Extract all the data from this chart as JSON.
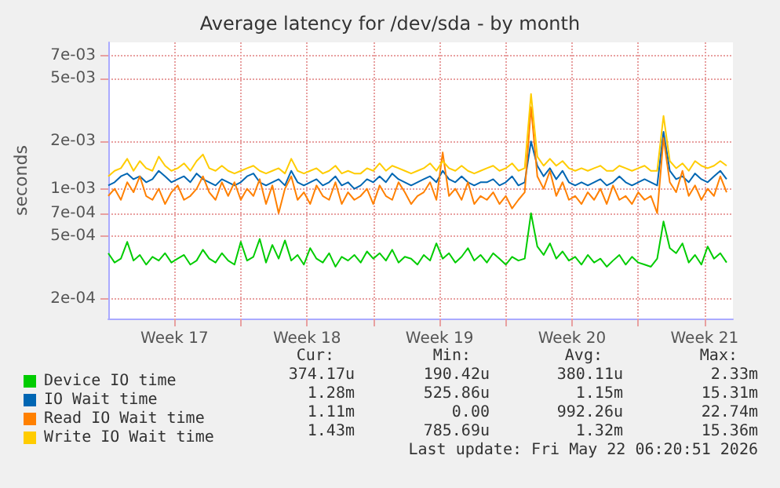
{
  "chart_data": {
    "type": "line",
    "title": "Average latency for /dev/sda - by month",
    "ylabel": "seconds",
    "log": "y",
    "grid": true,
    "legend": "bottom",
    "xlim": [
      "2026-04-20T00:00",
      "2026-05-23T00:00"
    ],
    "xticks": [
      {
        "value": "2026-04-23T12:00",
        "label": "Week 17"
      },
      {
        "value": "2026-04-27T00:00",
        "label": null
      },
      {
        "value": "2026-04-30T12:00",
        "label": "Week 18"
      },
      {
        "value": "2026-05-04T00:00",
        "label": null
      },
      {
        "value": "2026-05-07T12:00",
        "label": "Week 19"
      },
      {
        "value": "2026-05-11T00:00",
        "label": null
      },
      {
        "value": "2026-05-14T12:00",
        "label": "Week 20"
      },
      {
        "value": "2026-05-18T00:00",
        "label": null
      },
      {
        "value": "2026-05-21T12:00",
        "label": "Week 21"
      }
    ],
    "ylim": [
      0.00015,
      0.0085
    ],
    "yticks": [
      {
        "value": 0.0002,
        "label": "2e-04"
      },
      {
        "value": 0.0005,
        "label": "5e-04"
      },
      {
        "value": 0.0007,
        "label": "7e-04"
      },
      {
        "value": 0.001,
        "label": "1e-03"
      },
      {
        "value": 0.002,
        "label": "2e-03"
      },
      {
        "value": 0.005,
        "label": "5e-03"
      },
      {
        "value": 0.007,
        "label": "7e-03"
      }
    ],
    "x": [
      "2026-04-20T00:00",
      "2026-04-20T08:00",
      "2026-04-20T16:00",
      "2026-04-21T00:00",
      "2026-04-21T08:00",
      "2026-04-21T16:00",
      "2026-04-22T00:00",
      "2026-04-22T08:00",
      "2026-04-22T16:00",
      "2026-04-23T00:00",
      "2026-04-23T08:00",
      "2026-04-23T16:00",
      "2026-04-24T00:00",
      "2026-04-24T08:00",
      "2026-04-24T16:00",
      "2026-04-25T00:00",
      "2026-04-25T08:00",
      "2026-04-25T16:00",
      "2026-04-26T00:00",
      "2026-04-26T08:00",
      "2026-04-26T16:00",
      "2026-04-27T00:00",
      "2026-04-27T08:00",
      "2026-04-27T16:00",
      "2026-04-28T00:00",
      "2026-04-28T08:00",
      "2026-04-28T16:00",
      "2026-04-29T00:00",
      "2026-04-29T08:00",
      "2026-04-29T16:00",
      "2026-04-30T00:00",
      "2026-04-30T08:00",
      "2026-04-30T16:00",
      "2026-05-01T00:00",
      "2026-05-01T08:00",
      "2026-05-01T16:00",
      "2026-05-02T00:00",
      "2026-05-02T08:00",
      "2026-05-02T16:00",
      "2026-05-03T00:00",
      "2026-05-03T08:00",
      "2026-05-03T16:00",
      "2026-05-04T00:00",
      "2026-05-04T08:00",
      "2026-05-04T16:00",
      "2026-05-05T00:00",
      "2026-05-05T08:00",
      "2026-05-05T16:00",
      "2026-05-06T00:00",
      "2026-05-06T08:00",
      "2026-05-06T16:00",
      "2026-05-07T00:00",
      "2026-05-07T08:00",
      "2026-05-07T16:00",
      "2026-05-08T00:00",
      "2026-05-08T08:00",
      "2026-05-08T16:00",
      "2026-05-09T00:00",
      "2026-05-09T08:00",
      "2026-05-09T16:00",
      "2026-05-10T00:00",
      "2026-05-10T08:00",
      "2026-05-10T16:00",
      "2026-05-11T00:00",
      "2026-05-11T08:00",
      "2026-05-11T16:00",
      "2026-05-12T00:00",
      "2026-05-12T08:00",
      "2026-05-12T16:00",
      "2026-05-13T00:00",
      "2026-05-13T08:00",
      "2026-05-13T16:00",
      "2026-05-14T00:00",
      "2026-05-14T08:00",
      "2026-05-14T16:00",
      "2026-05-15T00:00",
      "2026-05-15T08:00",
      "2026-05-15T16:00",
      "2026-05-16T00:00",
      "2026-05-16T08:00",
      "2026-05-16T16:00",
      "2026-05-17T00:00",
      "2026-05-17T08:00",
      "2026-05-17T16:00",
      "2026-05-18T00:00",
      "2026-05-18T08:00",
      "2026-05-18T16:00",
      "2026-05-19T00:00",
      "2026-05-19T08:00",
      "2026-05-19T16:00",
      "2026-05-20T00:00",
      "2026-05-20T08:00",
      "2026-05-20T16:00",
      "2026-05-21T00:00",
      "2026-05-21T08:00",
      "2026-05-21T16:00",
      "2026-05-22T00:00",
      "2026-05-22T08:00",
      "2026-05-22T16:00"
    ],
    "series": [
      {
        "name": "Device IO time",
        "color": "#00cc00",
        "values": [
          0.00039,
          0.00034,
          0.00036,
          0.00046,
          0.00035,
          0.00038,
          0.00033,
          0.00037,
          0.00035,
          0.00039,
          0.00034,
          0.00036,
          0.00038,
          0.00033,
          0.00035,
          0.00041,
          0.00036,
          0.00034,
          0.00039,
          0.00035,
          0.00033,
          0.00046,
          0.00035,
          0.00037,
          0.00048,
          0.00034,
          0.00044,
          0.00036,
          0.00047,
          0.00035,
          0.00038,
          0.00033,
          0.00042,
          0.00036,
          0.00034,
          0.00039,
          0.00032,
          0.00037,
          0.00035,
          0.00038,
          0.00034,
          0.0004,
          0.00036,
          0.00039,
          0.00035,
          0.00041,
          0.00034,
          0.00037,
          0.00036,
          0.00033,
          0.00038,
          0.00035,
          0.00045,
          0.00036,
          0.00039,
          0.00034,
          0.00037,
          0.00042,
          0.00035,
          0.00038,
          0.00034,
          0.00039,
          0.00036,
          0.00033,
          0.00037,
          0.00035,
          0.00036,
          0.0007,
          0.00043,
          0.00038,
          0.00045,
          0.00036,
          0.0004,
          0.00035,
          0.00037,
          0.00033,
          0.00038,
          0.00034,
          0.00036,
          0.00032,
          0.00035,
          0.00038,
          0.00033,
          0.00037,
          0.00034,
          0.00033,
          0.00032,
          0.00036,
          0.00062,
          0.00042,
          0.00039,
          0.00045,
          0.00034,
          0.00038,
          0.00033,
          0.00043,
          0.00036,
          0.00039,
          0.00034
        ]
      },
      {
        "name": "IO Wait time",
        "color": "#0066b3",
        "values": [
          0.00105,
          0.0011,
          0.0012,
          0.00125,
          0.00115,
          0.0012,
          0.0011,
          0.00115,
          0.0013,
          0.0012,
          0.0011,
          0.00115,
          0.0012,
          0.0011,
          0.00125,
          0.00115,
          0.0011,
          0.00105,
          0.00115,
          0.0011,
          0.00105,
          0.0011,
          0.0012,
          0.00125,
          0.0011,
          0.00105,
          0.0011,
          0.00115,
          0.00105,
          0.0013,
          0.0011,
          0.00105,
          0.0011,
          0.00115,
          0.00105,
          0.0011,
          0.0012,
          0.00105,
          0.0011,
          0.001,
          0.00105,
          0.00115,
          0.0011,
          0.0012,
          0.0011,
          0.00125,
          0.00115,
          0.0011,
          0.00105,
          0.0011,
          0.00115,
          0.0012,
          0.0011,
          0.0013,
          0.00115,
          0.0011,
          0.0012,
          0.0011,
          0.00105,
          0.0011,
          0.0011,
          0.00115,
          0.00105,
          0.0011,
          0.0012,
          0.00105,
          0.0011,
          0.002,
          0.0014,
          0.0012,
          0.00135,
          0.00115,
          0.0013,
          0.0011,
          0.00105,
          0.0011,
          0.00105,
          0.0011,
          0.00115,
          0.00105,
          0.0011,
          0.0012,
          0.0011,
          0.00105,
          0.0011,
          0.00115,
          0.0011,
          0.00105,
          0.0023,
          0.0013,
          0.00115,
          0.0012,
          0.0011,
          0.00125,
          0.00115,
          0.0011,
          0.0012,
          0.0013,
          0.00115
        ]
      },
      {
        "name": "Read IO Wait time",
        "color": "#ff8000",
        "values": [
          0.0009,
          0.001,
          0.00085,
          0.0011,
          0.00095,
          0.0012,
          0.0009,
          0.00085,
          0.001,
          0.0008,
          0.00095,
          0.00105,
          0.00085,
          0.0009,
          0.001,
          0.0012,
          0.00095,
          0.00085,
          0.0011,
          0.0009,
          0.0011,
          0.00085,
          0.001,
          0.0009,
          0.00115,
          0.0008,
          0.00105,
          0.0007,
          0.001,
          0.0012,
          0.00085,
          0.00095,
          0.0008,
          0.00105,
          0.0009,
          0.00085,
          0.0011,
          0.0008,
          0.00095,
          0.00085,
          0.0009,
          0.001,
          0.0008,
          0.00105,
          0.0009,
          0.00085,
          0.0011,
          0.00095,
          0.0008,
          0.0009,
          0.00095,
          0.0011,
          0.00085,
          0.0017,
          0.0009,
          0.001,
          0.00085,
          0.0011,
          0.0008,
          0.0009,
          0.00085,
          0.00095,
          0.0008,
          0.0009,
          0.00075,
          0.00085,
          0.00095,
          0.0033,
          0.0012,
          0.001,
          0.0013,
          0.0009,
          0.0011,
          0.00085,
          0.0009,
          0.0008,
          0.00095,
          0.00085,
          0.001,
          0.0008,
          0.00105,
          0.00085,
          0.0009,
          0.0008,
          0.00095,
          0.00085,
          0.0009,
          0.0007,
          0.0021,
          0.0011,
          0.00095,
          0.0013,
          0.0009,
          0.00105,
          0.00085,
          0.001,
          0.0009,
          0.0012,
          0.00095
        ]
      },
      {
        "name": "Write IO Wait time",
        "color": "#ffcc00",
        "values": [
          0.0012,
          0.0013,
          0.00135,
          0.00155,
          0.0013,
          0.0015,
          0.00135,
          0.0013,
          0.0016,
          0.0014,
          0.0013,
          0.00135,
          0.00145,
          0.0013,
          0.0015,
          0.00165,
          0.00135,
          0.0013,
          0.0014,
          0.0013,
          0.00125,
          0.0013,
          0.00135,
          0.0014,
          0.0013,
          0.00125,
          0.0013,
          0.00135,
          0.00125,
          0.00155,
          0.0013,
          0.00125,
          0.0013,
          0.00135,
          0.00125,
          0.0013,
          0.0014,
          0.00125,
          0.0013,
          0.00125,
          0.00125,
          0.00135,
          0.0013,
          0.00145,
          0.0013,
          0.0014,
          0.00135,
          0.0013,
          0.00125,
          0.0013,
          0.00135,
          0.00145,
          0.0013,
          0.0015,
          0.00135,
          0.0013,
          0.0014,
          0.0013,
          0.00125,
          0.0013,
          0.00135,
          0.0014,
          0.0013,
          0.00135,
          0.00145,
          0.0013,
          0.00135,
          0.004,
          0.0016,
          0.0014,
          0.00155,
          0.0014,
          0.0015,
          0.00135,
          0.0013,
          0.00135,
          0.0013,
          0.00135,
          0.0014,
          0.0013,
          0.0013,
          0.0014,
          0.00135,
          0.0013,
          0.00135,
          0.0014,
          0.0013,
          0.0013,
          0.0029,
          0.0015,
          0.00135,
          0.00145,
          0.0013,
          0.0015,
          0.0014,
          0.00135,
          0.0014,
          0.0015,
          0.0014
        ]
      }
    ],
    "annotations": [
      "Cur:",
      "Min:",
      "Avg:",
      "Max:",
      "374.17u",
      "190.42u",
      "380.11u",
      "2.33m",
      "1.28m",
      "525.86u",
      "1.15m",
      "15.31m",
      "1.11m",
      "0.00",
      "992.26u",
      "22.74m",
      "1.43m",
      "785.69u",
      "1.32m",
      "15.36m",
      "Last update: Fri May 22 06:20:51 2026"
    ]
  }
}
